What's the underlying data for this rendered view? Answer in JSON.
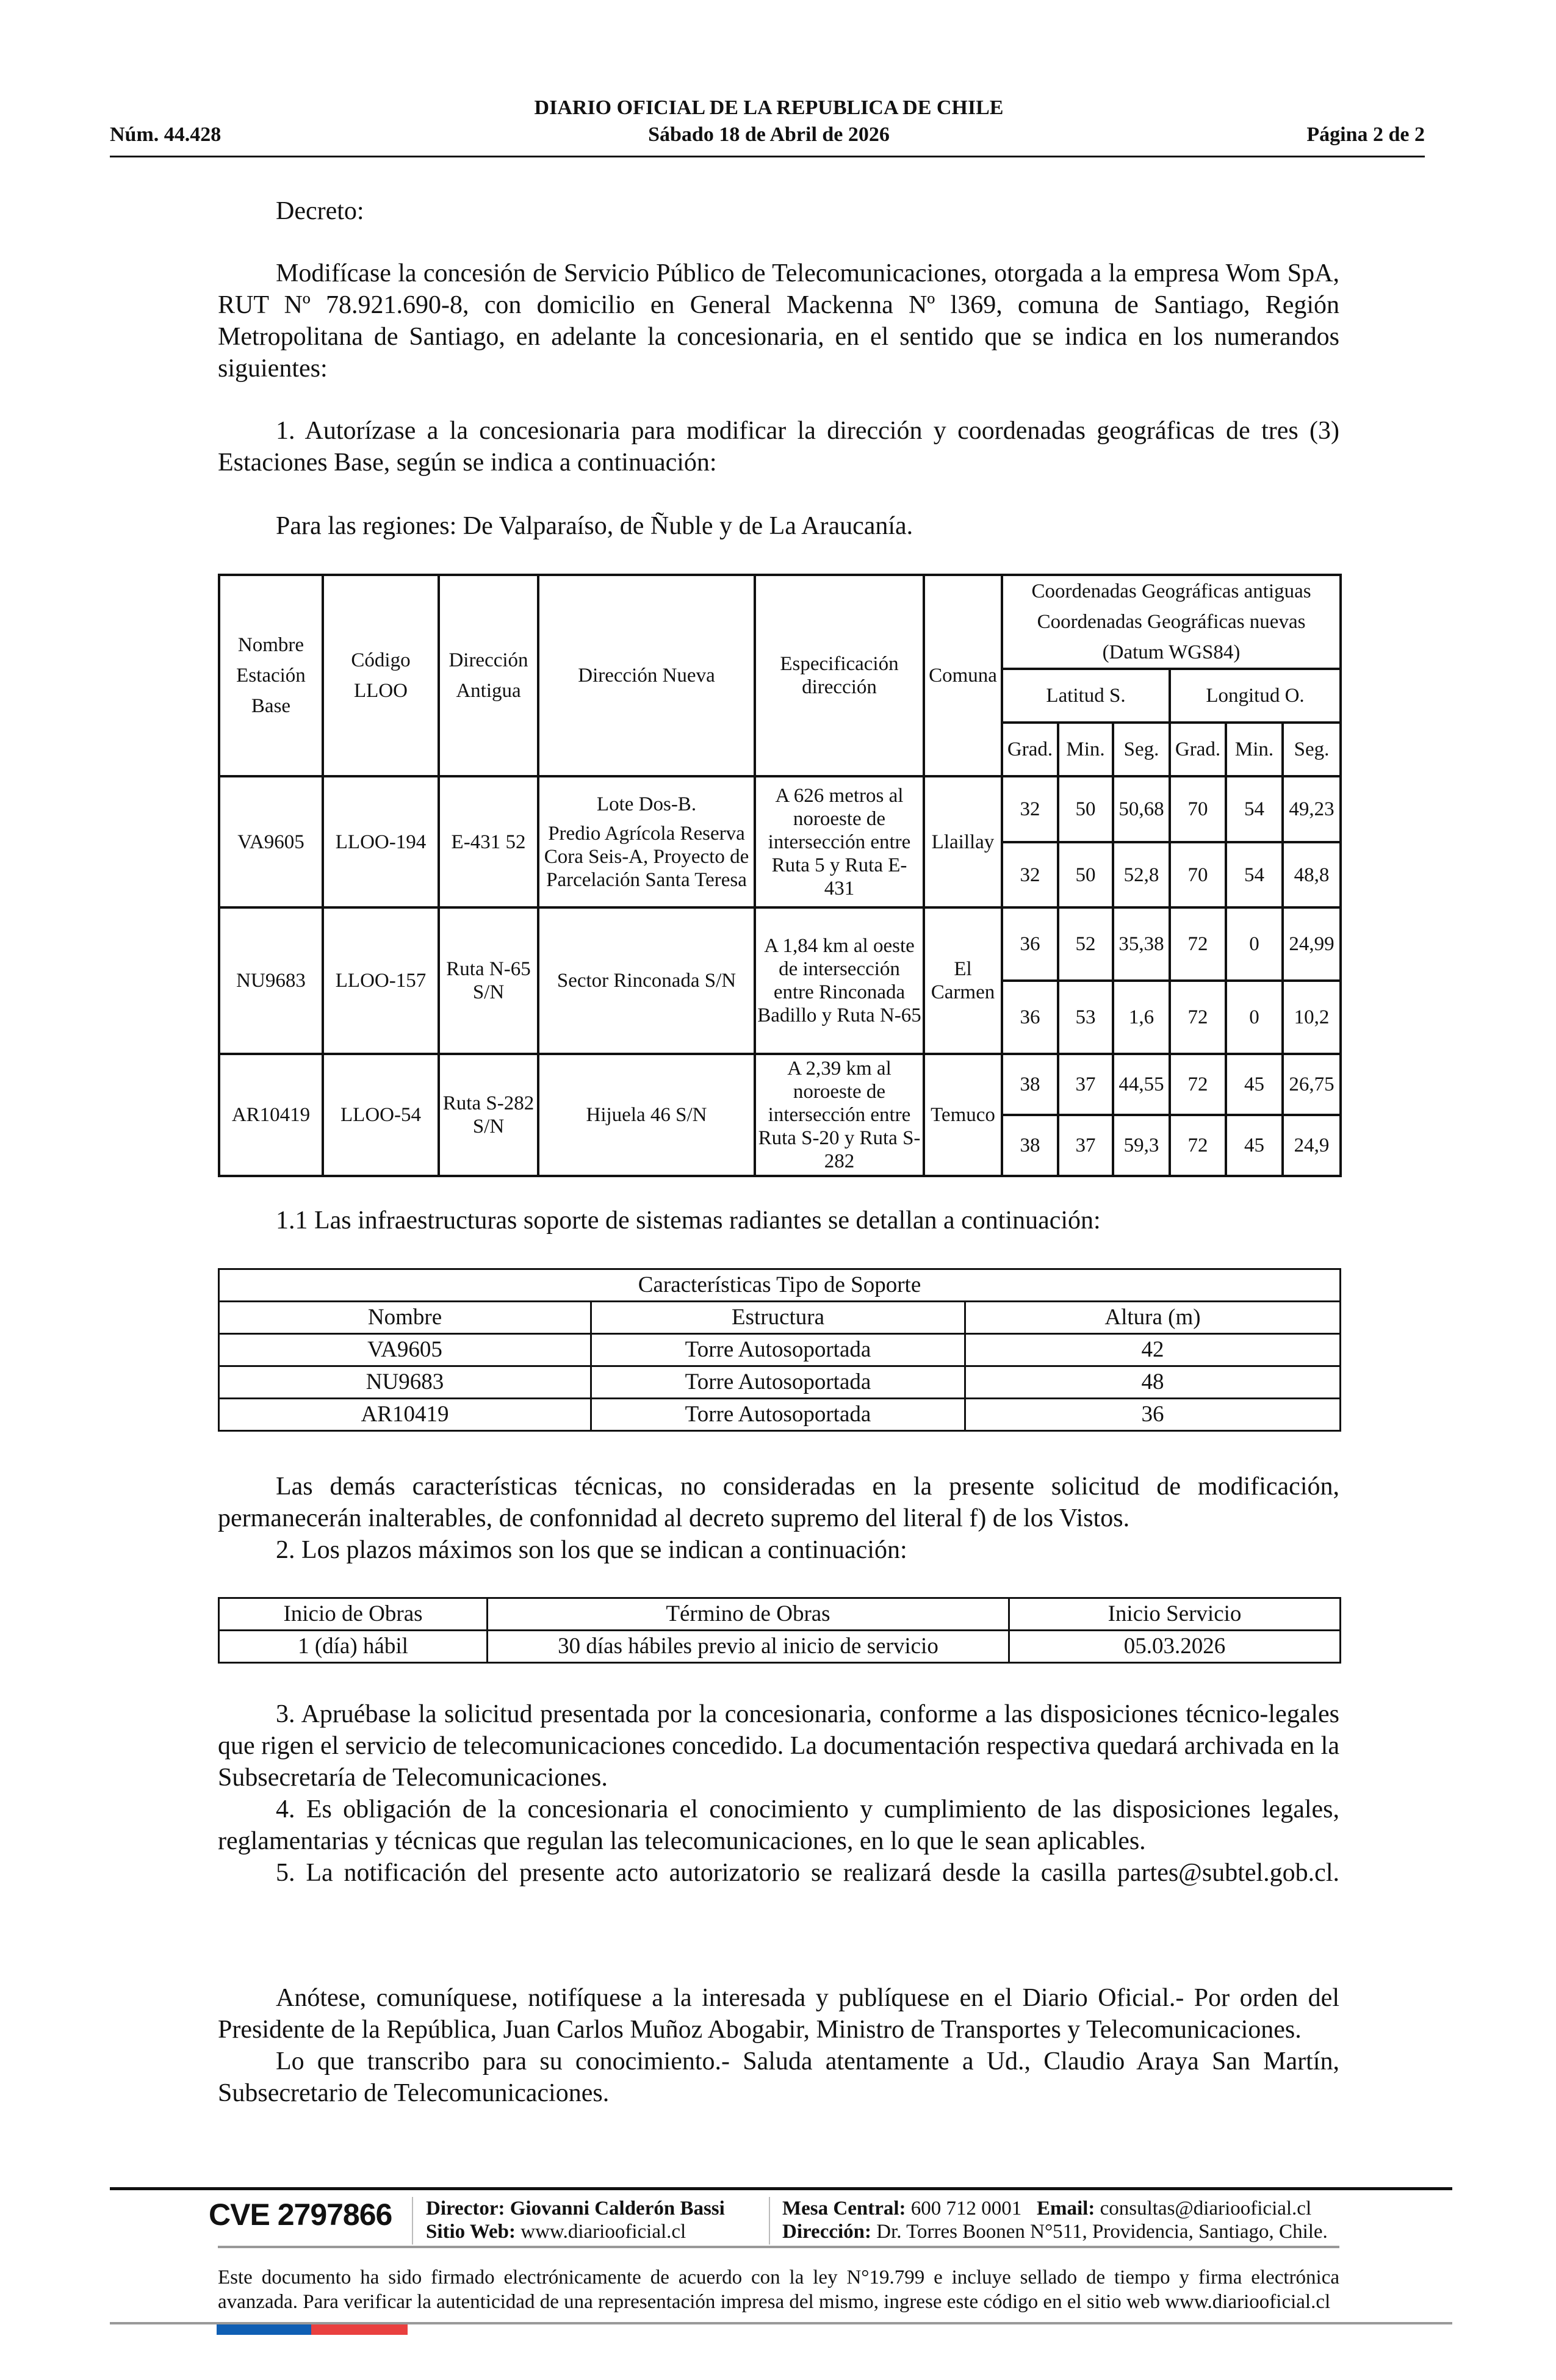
{
  "header": {
    "title": "DIARIO OFICIAL DE LA REPUBLICA DE CHILE",
    "number": "Núm. 44.428",
    "date": "Sábado 18 de Abril de 2026",
    "page": "Página 2 de 2"
  },
  "body": {
    "decreto": "Decreto:",
    "p1": "Modifícase la concesión de Servicio Público de Telecomunicaciones, otorgada a la empresa Wom SpA, RUT Nº 78.921.690-8, con domicilio en General Mackenna Nº l369, comuna de Santiago, Región Metropolitana de Santiago, en adelante la concesionaria, en el sentido que se indica en los numerandos siguientes:",
    "p2": "1. Autorízase a la concesionaria para modificar la dirección y coordenadas geográficas de tres (3) Estaciones Base, según se indica a continuación:",
    "p3": "Para las regiones: De Valparaíso, de Ñuble y de La Araucanía.",
    "p4": "1.1 Las infraestructuras soporte de sistemas radiantes se detallan a continuación:",
    "p5": "Las demás características técnicas, no consideradas en la presente solicitud de modificación, permanecerán inalterables, de confonnidad al decreto supremo del literal f) de los Vistos.",
    "p6": "2. Los plazos máximos son los que se indican a continuación:",
    "p7": "3. Apruébase la solicitud presentada por la concesionaria, conforme a las disposiciones técnico-legales que rigen el servicio de telecomunicaciones concedido. La documentación respectiva quedará archivada en la Subsecretaría de Telecomunicaciones.",
    "p8": "4. Es obligación de la concesionaria el conocimiento y cumplimiento de las disposiciones legales, reglamentarias y técnicas que regulan las telecomunicaciones, en lo que le sean aplicables.",
    "p9": "5. La notificación del presente acto autorizatorio se realizará desde la casilla partes@subtel.gob.cl.",
    "p10": "Anótese, comuníquese, notifíquese a la interesada y publíquese en el Diario Oficial.- Por orden del Presidente de la República, Juan Carlos Muñoz Abogabir, Ministro de Transportes y Telecomunicaciones.",
    "p11": "Lo que transcribo para su conocimiento.- Saluda atentamente a Ud., Claudio Araya San Martín, Subsecretario de Telecomunicaciones."
  },
  "table1": {
    "headers": {
      "nombre": "Nombre Estación Base",
      "codigo": "Código LLOO",
      "dir_antigua": "Dirección Antigua",
      "dir_nueva": "Dirección Nueva",
      "especificacion": "Especificación dirección",
      "comuna": "Comuna",
      "coords_line1": "Coordenadas Geográficas antiguas",
      "coords_line2": "Coordenadas Geográficas nuevas",
      "coords_line3": "(Datum WGS84)",
      "latitud": "Latitud S.",
      "longitud": "Longitud O.",
      "grad": "Grad.",
      "min": "Min.",
      "seg": "Seg."
    },
    "rows": [
      {
        "nombre": "VA9605",
        "codigo": "LLOO-194",
        "dir_antigua": "E-431 52",
        "dir_nueva_1": "Lote Dos-B.",
        "dir_nueva_2": "Predio Agrícola Reserva Cora Seis-A, Proyecto de Parcelación Santa Teresa",
        "especificacion": "A 626 metros al noroeste de intersección entre Ruta 5 y Ruta E-431",
        "comuna": "Llaillay",
        "old": [
          "32",
          "50",
          "50,68",
          "70",
          "54",
          "49,23"
        ],
        "new": [
          "32",
          "50",
          "52,8",
          "70",
          "54",
          "48,8"
        ]
      },
      {
        "nombre": "NU9683",
        "codigo": "LLOO-157",
        "dir_antigua": "Ruta N-65 S/N",
        "dir_nueva_1": "Sector Rinconada S/N",
        "dir_nueva_2": "",
        "especificacion": "A 1,84 km al oeste de intersección entre Rinconada Badillo y Ruta N-65",
        "comuna": "El Carmen",
        "old": [
          "36",
          "52",
          "35,38",
          "72",
          "0",
          "24,99"
        ],
        "new": [
          "36",
          "53",
          "1,6",
          "72",
          "0",
          "10,2"
        ]
      },
      {
        "nombre": "AR10419",
        "codigo": "LLOO-54",
        "dir_antigua": "Ruta S-282 S/N",
        "dir_nueva_1": "Hijuela 46 S/N",
        "dir_nueva_2": "",
        "especificacion": "A 2,39 km al noroeste de intersección entre Ruta S-20 y Ruta S-282",
        "comuna": "Temuco",
        "old": [
          "38",
          "37",
          "44,55",
          "72",
          "45",
          "26,75"
        ],
        "new": [
          "38",
          "37",
          "59,3",
          "72",
          "45",
          "24,9"
        ]
      }
    ]
  },
  "table2": {
    "title": "Características Tipo de Soporte",
    "headers": [
      "Nombre",
      "Estructura",
      "Altura (m)"
    ],
    "rows": [
      [
        "VA9605",
        "Torre Autosoportada",
        "42"
      ],
      [
        "NU9683",
        "Torre Autosoportada",
        "48"
      ],
      [
        "AR10419",
        "Torre Autosoportada",
        "36"
      ]
    ]
  },
  "table3": {
    "headers": [
      "Inicio de Obras",
      "Término de Obras",
      "Inicio Servicio"
    ],
    "rows": [
      [
        "1 (día) hábil",
        "30 días hábiles previo al inicio de servicio",
        "05.03.2026"
      ]
    ]
  },
  "footer": {
    "cve": "CVE 2797866",
    "director_label": "Director:",
    "director": "Giovanni Calderón Bassi",
    "web_label": "Sitio Web:",
    "web": "www.diariooficial.cl",
    "mesa_label": "Mesa Central:",
    "mesa": "600 712 0001",
    "email_label": "Email:",
    "email": "consultas@diariooficial.cl",
    "dir_label": "Dirección:",
    "direccion": "Dr. Torres Boonen N°511, Providencia, Santiago, Chile.",
    "legal": "Este documento ha sido firmado electrónicamente de acuerdo con la ley N°19.799 e incluye sellado de tiempo y firma electrónica avanzada. Para verificar la autenticidad de una representación impresa del mismo, ingrese este código en el sitio web www.diariooficial.cl",
    "bar_colors": [
      "#0f5fb4",
      "#e9403f"
    ]
  }
}
